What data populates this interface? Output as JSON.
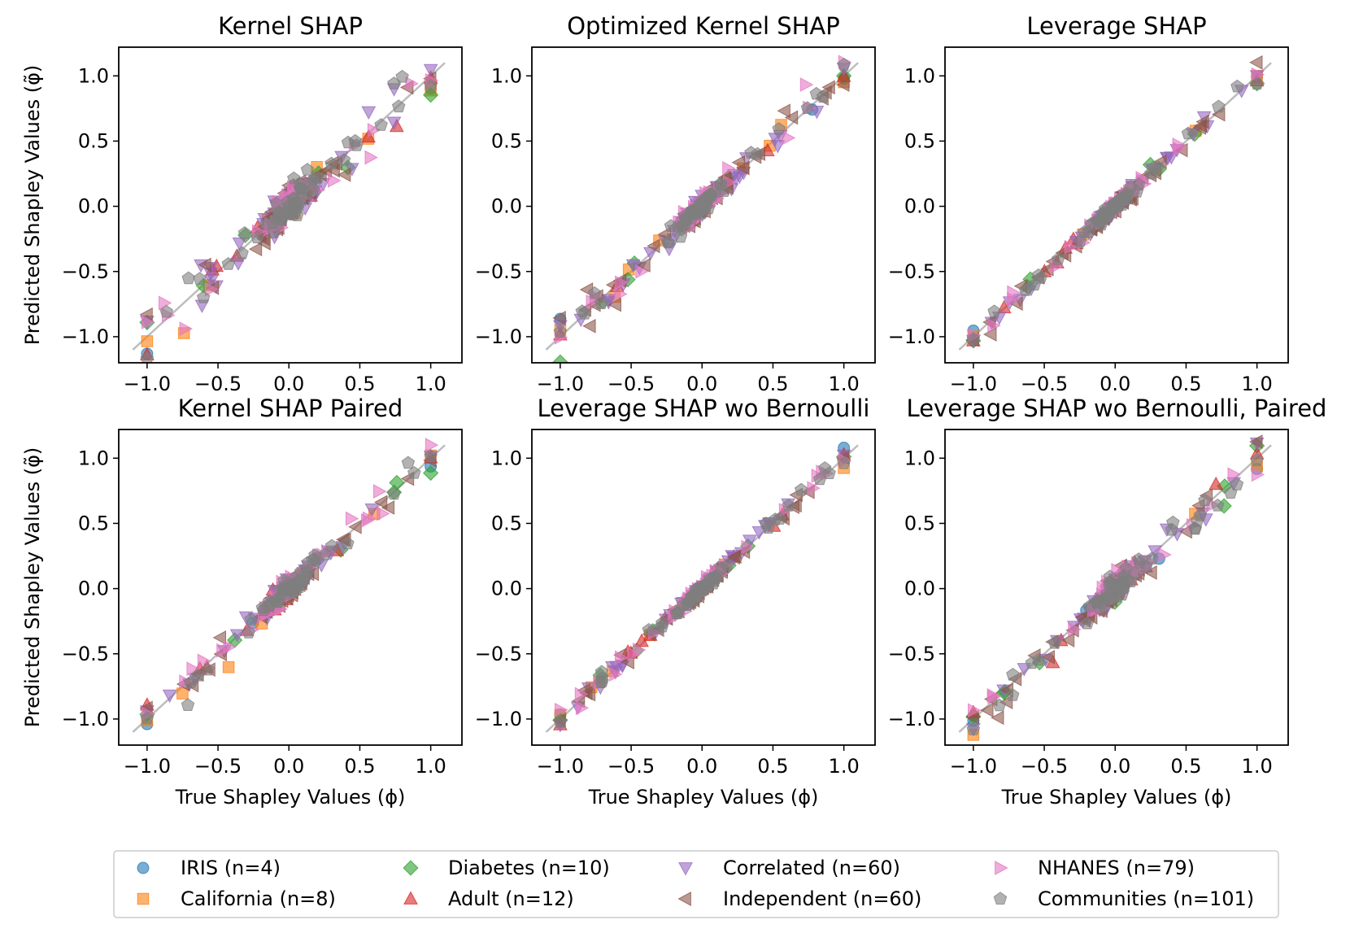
{
  "chart_data": [
    {
      "type": "scatter",
      "title": "Kernel SHAP",
      "xlabel": "",
      "ylabel": "Predicted Shapley Values (φ̃)",
      "xlim": [
        -1.2,
        1.2
      ],
      "ylim": [
        -1.2,
        1.2
      ],
      "seed": 11,
      "noise": 0.1
    },
    {
      "type": "scatter",
      "title": "Optimized Kernel SHAP",
      "xlabel": "",
      "ylabel": "",
      "xlim": [
        -1.2,
        1.2
      ],
      "ylim": [
        -1.2,
        1.2
      ],
      "seed": 23,
      "noise": 0.06
    },
    {
      "type": "scatter",
      "title": "Leverage SHAP",
      "xlabel": "",
      "ylabel": "",
      "xlim": [
        -1.2,
        1.2
      ],
      "ylim": [
        -1.2,
        1.2
      ],
      "seed": 37,
      "noise": 0.035
    },
    {
      "type": "scatter",
      "title": "Kernel SHAP Paired",
      "xlabel": "True Shapley Values (ϕ)",
      "ylabel": "Predicted Shapley Values (φ̃)",
      "xlim": [
        -1.2,
        1.2
      ],
      "ylim": [
        -1.2,
        1.2
      ],
      "seed": 41,
      "noise": 0.06
    },
    {
      "type": "scatter",
      "title": "Leverage SHAP wo Bernoulli",
      "xlabel": "True Shapley Values (ϕ)",
      "ylabel": "",
      "xlim": [
        -1.2,
        1.2
      ],
      "ylim": [
        -1.2,
        1.2
      ],
      "seed": 53,
      "noise": 0.03
    },
    {
      "type": "scatter",
      "title": "Leverage SHAP wo Bernoulli, Paired",
      "xlabel": "True Shapley Values (ϕ)",
      "ylabel": "",
      "xlim": [
        -1.2,
        1.2
      ],
      "ylim": [
        -1.2,
        1.2
      ],
      "seed": 67,
      "noise": 0.07
    }
  ],
  "ticks": [
    -1.0,
    -0.5,
    0.0,
    0.5,
    1.0
  ],
  "tick_labels": [
    "−1.0",
    "−0.5",
    "0.0",
    "0.5",
    "1.0"
  ],
  "shared_series": [
    {
      "name": "IRIS (n=4)",
      "n": 4,
      "marker": "circle",
      "color": "#1f77b4"
    },
    {
      "name": "California (n=8)",
      "n": 8,
      "marker": "square",
      "color": "#ff7f0e"
    },
    {
      "name": "Diabetes (n=10)",
      "n": 10,
      "marker": "diamond",
      "color": "#2ca02c"
    },
    {
      "name": "Adult (n=12)",
      "n": 12,
      "marker": "triangle-up",
      "color": "#d62728"
    },
    {
      "name": "Correlated (n=60)",
      "n": 60,
      "marker": "triangle-down",
      "color": "#9467bd"
    },
    {
      "name": "Independent (n=60)",
      "n": 60,
      "marker": "triangle-left",
      "color": "#8c564b"
    },
    {
      "name": "NHANES (n=79)",
      "n": 79,
      "marker": "triangle-right",
      "color": "#e377c2"
    },
    {
      "name": "Communities (n=101)",
      "n": 101,
      "marker": "pentagon",
      "color": "#7f7f7f"
    }
  ],
  "diagonal_color": "#bdbdbd",
  "marker_alpha": 0.6
}
